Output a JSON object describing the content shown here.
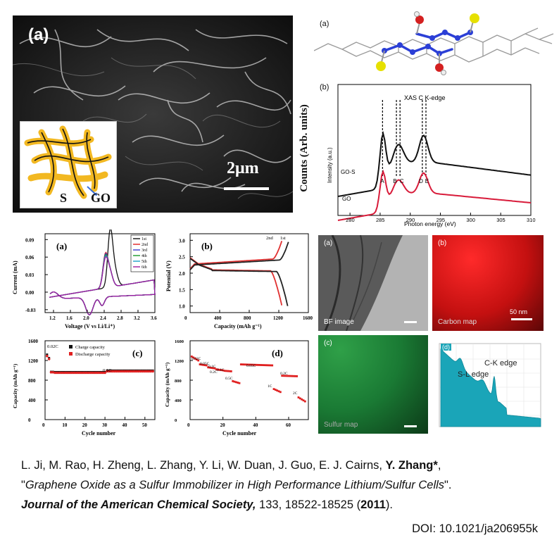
{
  "sem": {
    "panel": "(a)",
    "scale": "2μm",
    "inset_s": "S",
    "inset_go": "GO"
  },
  "mol": {
    "panel": "(a)"
  },
  "xas": {
    "panel": "(b)",
    "outer_ylabel": "Counts (Arb. units)",
    "title": "XAS    C K-edge",
    "ylabel": "Intensity (a.u.)",
    "xlabel": "Photon energy (eV)",
    "series": [
      "GO-S",
      "GO"
    ],
    "peaks": [
      "A",
      "B",
      "C",
      "D",
      "E"
    ],
    "xticks": [
      "280",
      "285",
      "290",
      "295",
      "300",
      "305",
      "310"
    ]
  },
  "cv": {
    "panel": "(a)",
    "xlabel": "Voltage (V vs Li/Li⁺)",
    "ylabel": "Current (mA)",
    "legend": [
      "1st",
      "2nd",
      "3rd",
      "4th",
      "5th",
      "6th"
    ],
    "xticks": [
      "1.2",
      "1.6",
      "2.0",
      "2.4",
      "2.8",
      "3.2",
      "3.6"
    ],
    "yticks": [
      "0.09",
      "0.06",
      "0.03",
      "0.00",
      "-0.03"
    ]
  },
  "vc": {
    "panel": "(b)",
    "xlabel": "Capacity (mAh g⁻¹)",
    "ylabel": "Potential (V)",
    "labels": [
      "2nd",
      "1st"
    ],
    "xticks": [
      "0",
      "400",
      "800",
      "1200",
      "1600"
    ],
    "yticks": [
      "3.0",
      "2.5",
      "2.0",
      "1.5",
      "1.0"
    ]
  },
  "cyc": {
    "panel": "(c)",
    "xlabel": "Cycle number",
    "ylabel": "Capacity (mAh g⁻¹)",
    "legend": [
      "Charge capacity",
      "Discharge capacity"
    ],
    "ann1": "0.02C",
    "ann2": "0.1C",
    "xticks": [
      "0",
      "10",
      "20",
      "30",
      "40",
      "50"
    ],
    "yticks": [
      "1600",
      "1200",
      "800",
      "400",
      "0"
    ]
  },
  "rate": {
    "panel": "(d)",
    "xlabel": "Cycle number",
    "ylabel": "Capacity (mAh g⁻¹)",
    "anns": [
      "0.02C",
      "0.05C",
      "0.1C",
      "0.1C",
      "0.2C",
      "0.5C",
      "0.05C",
      "1C",
      "0.2C",
      "2C"
    ],
    "xticks": [
      "0",
      "20",
      "40",
      "60"
    ],
    "yticks": [
      "1600",
      "1200",
      "800",
      "400",
      "0"
    ]
  },
  "tem": {
    "a_panel": "(a)",
    "a_label": "BF image",
    "b_panel": "(b)",
    "b_label": "Carbon map",
    "b_scale": "50 nm",
    "c_panel": "(c)",
    "c_label": "Sulfur map",
    "d_panel": "(d)",
    "d_sl": "S-L edge",
    "d_ck": "C-K edge"
  },
  "citation": {
    "authors": "L. Ji, M. Rao, H. Zheng, L. Zhang, Y. Li, W. Duan, J. Guo, E. J. Cairns, ",
    "corresponding": "Y. Zhang*",
    "comma": ",",
    "title_open": "\"",
    "title": "Graphene Oxide as a Sulfur Immobilizer in High Performance Lithium/Sulfur Cells",
    "title_close": "\".",
    "journal": "Journal of the American Chemical Society,",
    "volume": " 133, 18522-18525 (",
    "year": "2011",
    "close": ").",
    "doi": "DOI: 10.1021/ja206955k"
  }
}
